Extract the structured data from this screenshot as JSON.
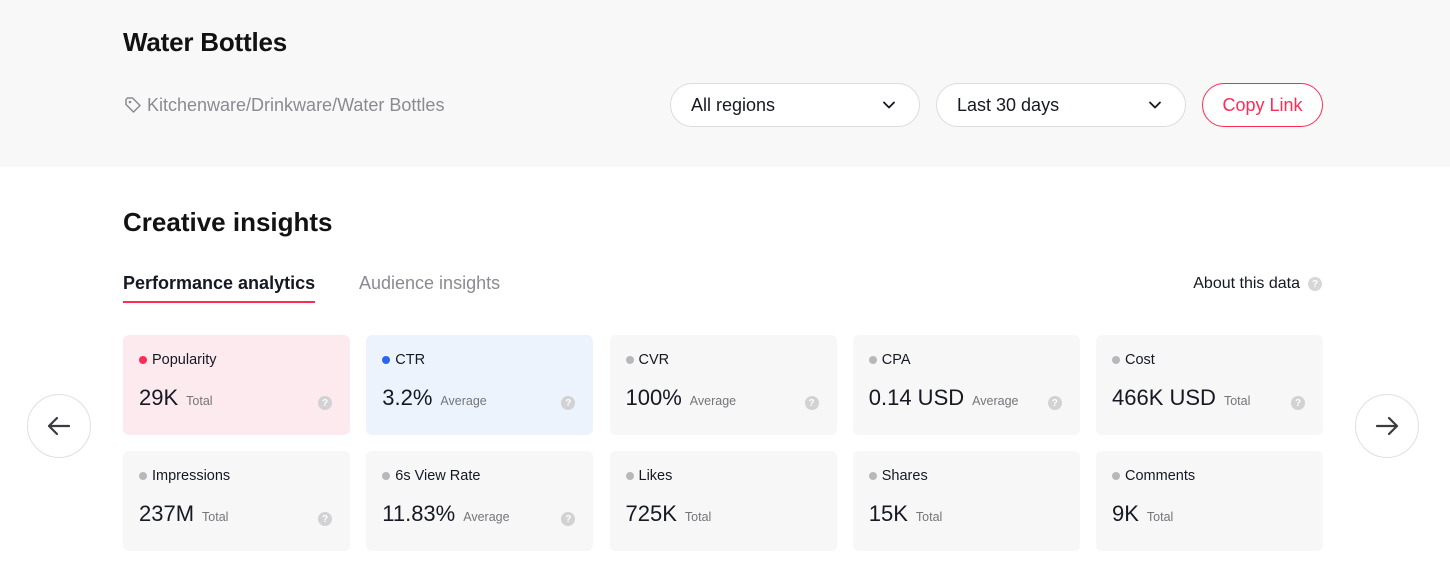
{
  "header": {
    "title": "Water Bottles",
    "breadcrumb": "Kitchenware/Drinkware/Water Bottles",
    "breadcrumb_icon": "tag-icon",
    "region_select": "All regions",
    "period_select": "Last 30 days",
    "copy_link_label": "Copy Link"
  },
  "section": {
    "title": "Creative insights",
    "tabs": [
      {
        "label": "Performance analytics",
        "active": true
      },
      {
        "label": "Audience insights",
        "active": false
      }
    ],
    "about_label": "About this data"
  },
  "colors": {
    "accent": "#fe2c55",
    "popularity_dot": "#fe2c55",
    "ctr_dot": "#2a66ee",
    "neutral_dot": "#b8b8bb"
  },
  "metrics": [
    {
      "label": "Popularity",
      "value": "29K",
      "unit": "Total",
      "help": "?"
    },
    {
      "label": "CTR",
      "value": "3.2%",
      "unit": "Average",
      "help": "?"
    },
    {
      "label": "CVR",
      "value": "100%",
      "unit": "Average",
      "help": "?"
    },
    {
      "label": "CPA",
      "value": "0.14 USD",
      "unit": "Average",
      "help": "?"
    },
    {
      "label": "Cost",
      "value": "466K USD",
      "unit": "Total",
      "help": "?"
    },
    {
      "label": "Impressions",
      "value": "237M",
      "unit": "Total",
      "help": "?"
    },
    {
      "label": "6s View Rate",
      "value": "11.83%",
      "unit": "Average",
      "help": "?"
    },
    {
      "label": "Likes",
      "value": "725K",
      "unit": "Total"
    },
    {
      "label": "Shares",
      "value": "15K",
      "unit": "Total"
    },
    {
      "label": "Comments",
      "value": "9K",
      "unit": "Total"
    }
  ],
  "help_glyph": "?"
}
